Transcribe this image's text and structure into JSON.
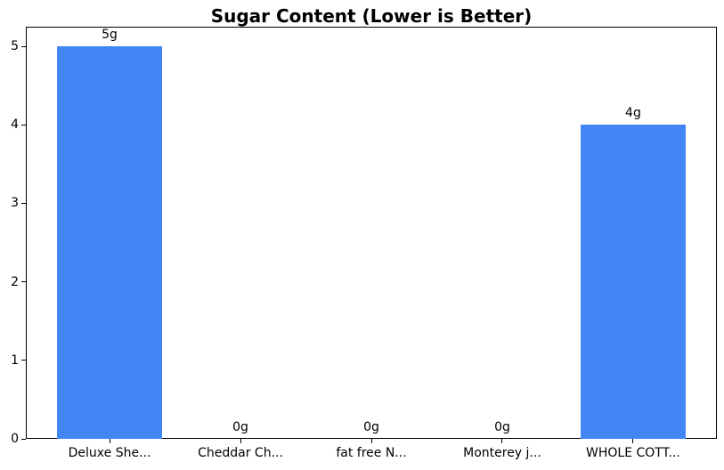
{
  "chart_data": {
    "type": "bar",
    "title": "Sugar Content (Lower is Better)",
    "categories": [
      "Deluxe She...",
      "Cheddar Ch...",
      "fat free N...",
      "Monterey j...",
      "WHOLE COTT..."
    ],
    "values": [
      5,
      0,
      0,
      0,
      4
    ],
    "bar_labels": [
      "5g",
      "0g",
      "0g",
      "0g",
      "4g"
    ],
    "xlabel": "",
    "ylabel": "",
    "ylim": [
      0,
      5.25
    ],
    "xlim": [
      -0.64,
      4.64
    ],
    "yticks": [
      0,
      1,
      2,
      3,
      4,
      5
    ],
    "ytick_labels": [
      "0",
      "1",
      "2",
      "3",
      "4",
      "5"
    ],
    "bar_width": 0.8,
    "grid": false,
    "legend": false,
    "colors": {
      "bar": "#4285f4",
      "axis": "#000000",
      "text": "#000000",
      "background": "#ffffff"
    }
  }
}
